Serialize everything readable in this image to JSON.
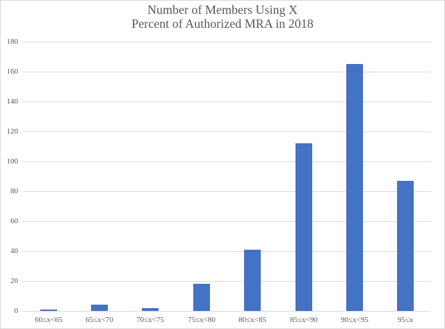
{
  "chart_data": {
    "type": "bar",
    "title": "Number of Members Using X Percent of Authorized MRA in 2018",
    "title_lines": [
      "Number of Members Using X",
      "Percent of Authorized MRA in 2018"
    ],
    "xlabel": "",
    "ylabel": "",
    "categories": [
      "60≤x<65",
      "65≤x<70",
      "70≤x<75",
      "75≤x<80",
      "80≤x<85",
      "85≤x<90",
      "90≤x<95",
      "95≤x"
    ],
    "values": [
      1,
      4,
      2,
      18,
      41,
      112,
      165,
      87
    ],
    "ylim": [
      0,
      180
    ],
    "yticks": [
      0,
      20,
      40,
      60,
      80,
      100,
      120,
      140,
      160,
      180
    ],
    "grid": true,
    "legend": null,
    "bar_color": "#4472c4"
  }
}
